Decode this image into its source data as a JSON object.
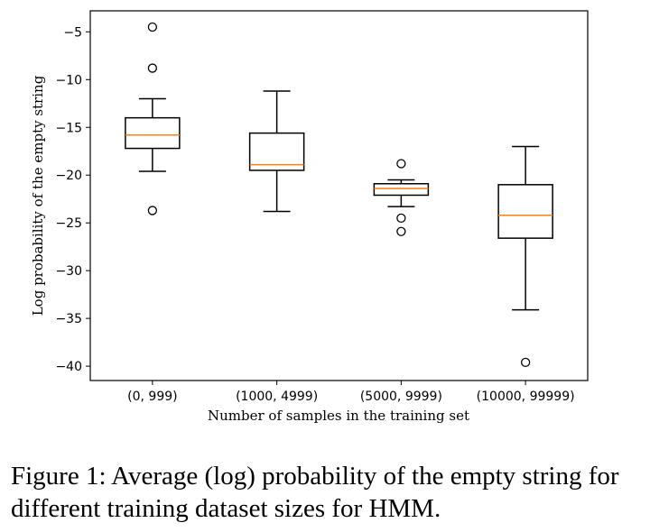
{
  "chart_data": {
    "type": "box",
    "xlabel": "Number of samples in the training set",
    "ylabel": "Log probability of the empty string",
    "ylim": [
      -41.5,
      -2.8
    ],
    "yticks": [
      -5,
      -10,
      -15,
      -20,
      -25,
      -30,
      -35,
      -40
    ],
    "grid": false,
    "categories": [
      "(0, 999)",
      "(1000, 4999)",
      "(5000, 9999)",
      "(10000, 99999)"
    ],
    "boxes": [
      {
        "whisker_low": -19.6,
        "q1": -17.2,
        "median": -15.8,
        "q3": -14.0,
        "whisker_high": -12.0,
        "outliers": [
          -4.5,
          -8.8,
          -23.7
        ]
      },
      {
        "whisker_low": -23.8,
        "q1": -19.5,
        "median": -18.9,
        "q3": -15.6,
        "whisker_high": -11.2,
        "outliers": []
      },
      {
        "whisker_low": -23.3,
        "q1": -22.1,
        "median": -21.4,
        "q3": -20.9,
        "whisker_high": -20.5,
        "outliers": [
          -18.8,
          -24.5,
          -25.9
        ]
      },
      {
        "whisker_low": -34.1,
        "q1": -26.6,
        "median": -24.2,
        "q3": -21.0,
        "whisker_high": -17.0,
        "outliers": [
          -39.6
        ]
      }
    ],
    "colors": {
      "box": "#000000",
      "median": "#ff7f0e",
      "outlier": "#000000"
    }
  },
  "caption": "Figure 1: Average (log) probability of the empty string for different training dataset sizes for HMM."
}
